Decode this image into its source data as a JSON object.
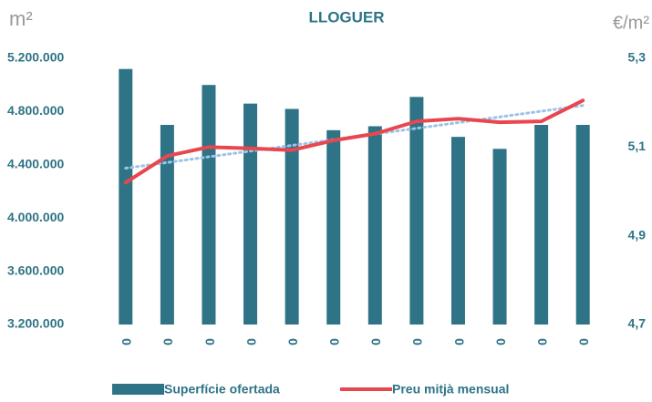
{
  "chart_data": {
    "type": "bar_line",
    "title": "LLOGUER",
    "ylabel": "m²",
    "y2label": "€/m²",
    "categories": [
      "0",
      "0",
      "0",
      "0",
      "0",
      "0",
      "0",
      "0",
      "0",
      "0",
      "0",
      "0"
    ],
    "series": [
      {
        "name": "Superfície ofertada",
        "type": "bar",
        "color": "#2e7486",
        "values": [
          5120000,
          4700000,
          5000000,
          4860000,
          4820000,
          4660000,
          4690000,
          4910000,
          4610000,
          4520000,
          4700000,
          4700000
        ]
      },
      {
        "name": "Preu mitjà mensual",
        "type": "line",
        "axis": "y2",
        "color": "#e8474f",
        "trendline": true,
        "trendline_color": "#9dc3e6",
        "values": [
          5.02,
          5.08,
          5.1,
          5.097,
          5.093,
          5.115,
          5.13,
          5.158,
          5.164,
          5.156,
          5.158,
          5.205
        ]
      }
    ],
    "ylim": [
      3200000,
      5200000
    ],
    "yticks": [
      {
        "value": 3200000,
        "label": "3.200.000"
      },
      {
        "value": 3600000,
        "label": "3.600.000"
      },
      {
        "value": 4000000,
        "label": "4.000.000"
      },
      {
        "value": 4400000,
        "label": "4.400.000"
      },
      {
        "value": 4800000,
        "label": "4.800.000"
      },
      {
        "value": 5200000,
        "label": "5.200.000"
      }
    ],
    "y2lim": [
      4.7,
      5.3
    ],
    "y2ticks": [
      {
        "value": 4.7,
        "label": "4,7"
      },
      {
        "value": 4.9,
        "label": "4,9"
      },
      {
        "value": 5.1,
        "label": "5,1"
      },
      {
        "value": 5.3,
        "label": "5,3"
      }
    ],
    "grid": false,
    "legend": "bottom"
  }
}
